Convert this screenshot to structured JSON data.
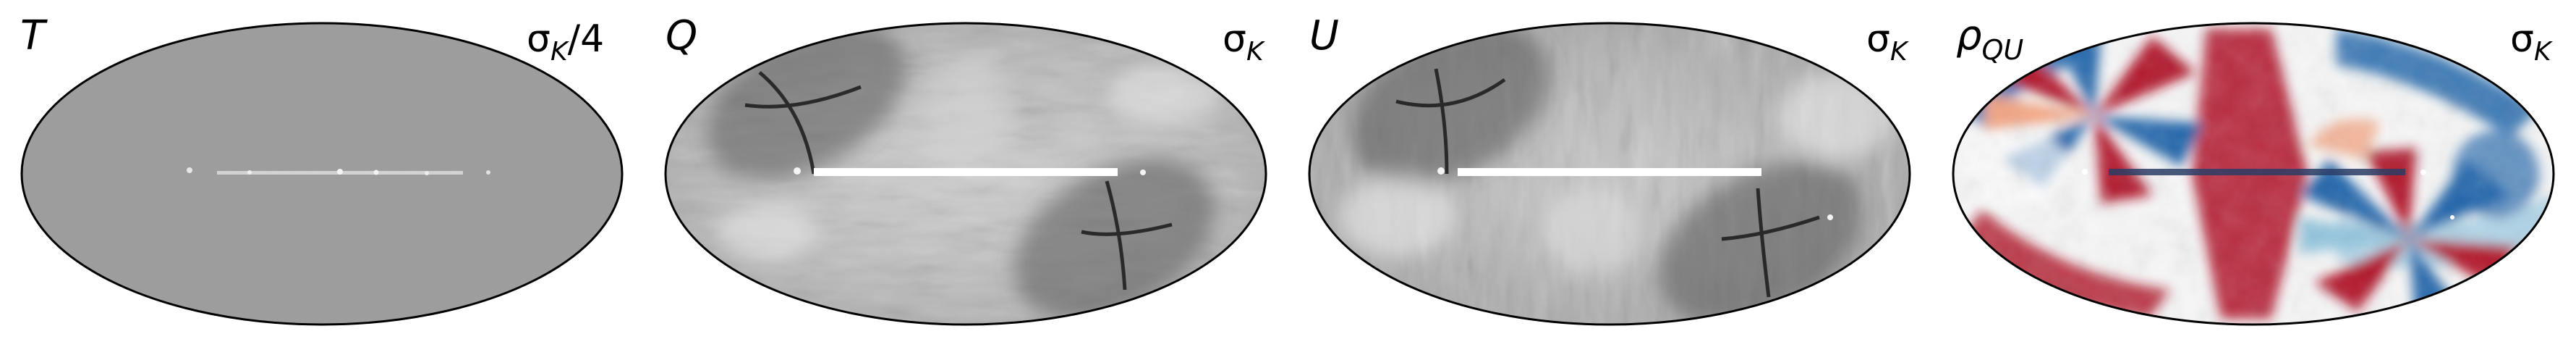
{
  "panels": [
    {
      "id": "T",
      "label_main": "T",
      "label_sub": "",
      "scale_main": "σ",
      "scale_sub": "K",
      "scale_suffix": "/4",
      "style": "flat-gray"
    },
    {
      "id": "Q",
      "label_main": "Q",
      "label_sub": "",
      "scale_main": "σ",
      "scale_sub": "K",
      "scale_suffix": "",
      "style": "grayscale-lobes"
    },
    {
      "id": "U",
      "label_main": "U",
      "label_sub": "",
      "scale_main": "σ",
      "scale_sub": "K",
      "scale_suffix": "",
      "style": "grayscale-lobes"
    },
    {
      "id": "rhoQU",
      "label_main": "ρ",
      "label_sub": "QU",
      "scale_main": "σ",
      "scale_sub": "K",
      "scale_suffix": "",
      "style": "red-blue-diverging"
    }
  ],
  "colors": {
    "outline": "#000000",
    "t_gray": "#9c9c9c",
    "plane": "#ffffff",
    "dark": "#2a2a2a",
    "red": "#b2182b",
    "blue": "#2166ac",
    "light_red": "#f4a582",
    "light_blue": "#92c5de"
  }
}
